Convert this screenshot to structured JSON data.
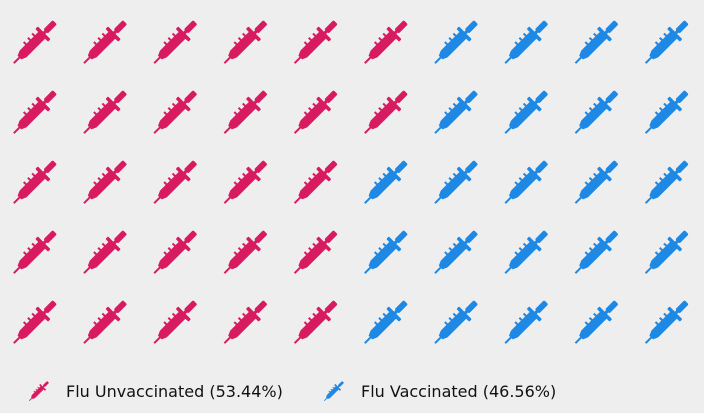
{
  "chart_data": {
    "type": "pictograph",
    "icon": "syringe-icon",
    "grid": {
      "rows": 5,
      "cols": 10
    },
    "fill_order": "column-major",
    "series": [
      {
        "name": "Flu Unvaccinated",
        "label": "Flu Unvaccinated (53.44%)",
        "percent": 53.44,
        "icon_count": 27,
        "color": "#d81b60"
      },
      {
        "name": "Flu Vaccinated",
        "label": "Flu Vaccinated (46.56%)",
        "percent": 46.56,
        "icon_count": 23,
        "color": "#1e88e5"
      }
    ],
    "legend": {
      "placement": "bottom"
    }
  },
  "background": "#eeeeee"
}
